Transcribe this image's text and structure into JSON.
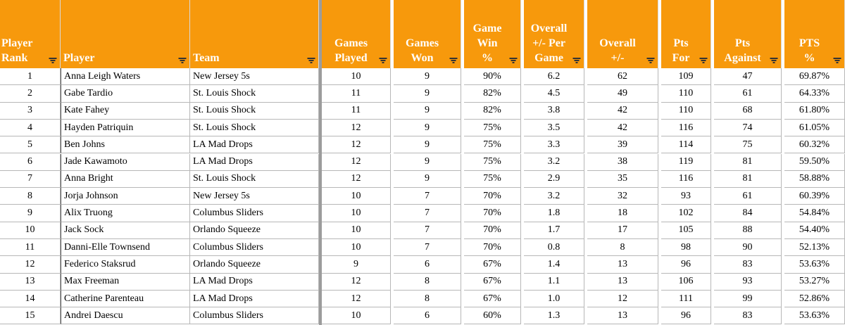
{
  "header": {
    "columns": [
      [
        "Player",
        "Rank"
      ],
      [
        "Player"
      ],
      [
        "Team"
      ],
      [
        "Games",
        "Played"
      ],
      [
        "Games",
        "Won"
      ],
      [
        "Game",
        "Win",
        "%"
      ],
      [
        "Overall",
        "+/- Per",
        "Game"
      ],
      [
        "Overall",
        "+/-"
      ],
      [
        "Pts",
        "For"
      ],
      [
        "Pts",
        "Against"
      ],
      [
        "PTS",
        "%"
      ]
    ]
  },
  "table": {
    "rows": [
      [
        "1",
        "Anna Leigh Waters",
        "New Jersey 5s",
        "10",
        "9",
        "90%",
        "6.2",
        "62",
        "109",
        "47",
        "69.87%"
      ],
      [
        "2",
        "Gabe Tardio",
        "St. Louis Shock",
        "11",
        "9",
        "82%",
        "4.5",
        "49",
        "110",
        "61",
        "64.33%"
      ],
      [
        "3",
        "Kate Fahey",
        "St. Louis Shock",
        "11",
        "9",
        "82%",
        "3.8",
        "42",
        "110",
        "68",
        "61.80%"
      ],
      [
        "4",
        "Hayden Patriquin",
        "St. Louis Shock",
        "12",
        "9",
        "75%",
        "3.5",
        "42",
        "116",
        "74",
        "61.05%"
      ],
      [
        "5",
        "Ben Johns",
        "LA Mad Drops",
        "12",
        "9",
        "75%",
        "3.3",
        "39",
        "114",
        "75",
        "60.32%"
      ],
      [
        "6",
        "Jade Kawamoto",
        "LA Mad Drops",
        "12",
        "9",
        "75%",
        "3.2",
        "38",
        "119",
        "81",
        "59.50%"
      ],
      [
        "7",
        "Anna Bright",
        "St. Louis Shock",
        "12",
        "9",
        "75%",
        "2.9",
        "35",
        "116",
        "81",
        "58.88%"
      ],
      [
        "8",
        "Jorja Johnson",
        "New Jersey 5s",
        "10",
        "7",
        "70%",
        "3.2",
        "32",
        "93",
        "61",
        "60.39%"
      ],
      [
        "9",
        "Alix Truong",
        "Columbus Sliders",
        "10",
        "7",
        "70%",
        "1.8",
        "18",
        "102",
        "84",
        "54.84%"
      ],
      [
        "10",
        "Jack Sock",
        "Orlando Squeeze",
        "10",
        "7",
        "70%",
        "1.7",
        "17",
        "105",
        "88",
        "54.40%"
      ],
      [
        "11",
        "Danni-Elle Townsend",
        "Columbus Sliders",
        "10",
        "7",
        "70%",
        "0.8",
        "8",
        "98",
        "90",
        "52.13%"
      ],
      [
        "12",
        "Federico Staksrud",
        "Orlando Squeeze",
        "9",
        "6",
        "67%",
        "1.4",
        "13",
        "96",
        "83",
        "53.63%"
      ],
      [
        "13",
        "Max Freeman",
        "LA Mad Drops",
        "12",
        "8",
        "67%",
        "1.1",
        "13",
        "106",
        "93",
        "53.27%"
      ],
      [
        "14",
        "Catherine Parenteau",
        "LA Mad Drops",
        "12",
        "8",
        "67%",
        "1.0",
        "12",
        "111",
        "99",
        "52.86%"
      ],
      [
        "15",
        "Andrei Daescu",
        "Columbus Sliders",
        "10",
        "6",
        "60%",
        "1.3",
        "13",
        "96",
        "83",
        "53.63%"
      ]
    ]
  }
}
